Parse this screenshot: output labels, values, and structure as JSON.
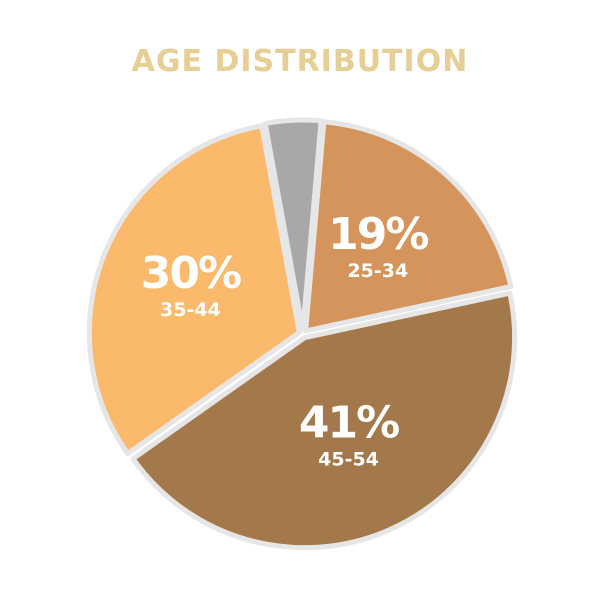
{
  "chart_data": {
    "type": "pie",
    "title": "AGE DISTRIBUTION",
    "slices": [
      {
        "category": "25-34",
        "value": 19,
        "label": "19%",
        "color": "#d4945c"
      },
      {
        "category": "45-54",
        "value": 41,
        "label": "41%",
        "color": "#a3784a"
      },
      {
        "category": "35-44",
        "value": 30,
        "label": "30%",
        "color": "#fbb96c"
      },
      {
        "category": "",
        "value": 4,
        "label": "",
        "color": "#a8a8a8"
      }
    ],
    "legend": "none"
  }
}
